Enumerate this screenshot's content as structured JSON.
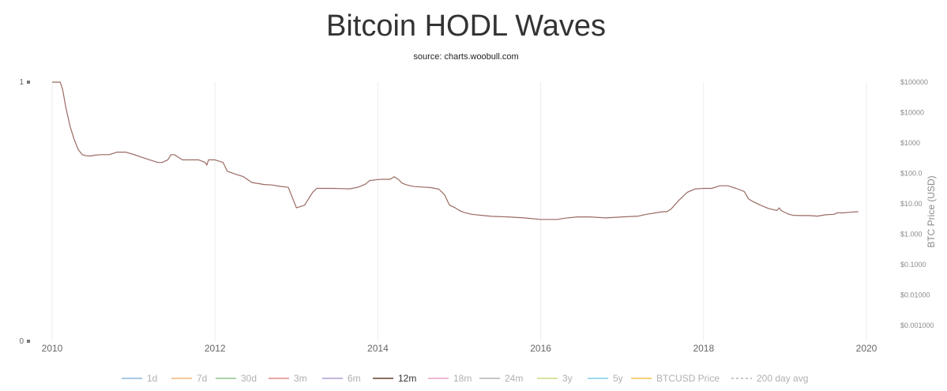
{
  "title": "Bitcoin HODL Waves",
  "subtitle": "source: charts.woobull.com",
  "chart_data": {
    "type": "line",
    "x_ticks": [
      "2010",
      "2012",
      "2014",
      "2016",
      "2018",
      "2020"
    ],
    "y_left_ticks": [
      "0",
      "1"
    ],
    "ylim_left": [
      0,
      1
    ],
    "y_right_ticks": [
      "$0.001000",
      "$0.01000",
      "$0.1000",
      "$1.000",
      "$10.00",
      "$100.0",
      "$1000",
      "$10000",
      "$100000"
    ],
    "y_right_label": "BTC Price (USD)",
    "series": [
      {
        "name": "12m",
        "color": "#9a6a62",
        "x": [
          2010.0,
          2010.06,
          2010.1,
          2010.13,
          2010.17,
          2010.22,
          2010.27,
          2010.32,
          2010.37,
          2010.42,
          2010.47,
          2010.52,
          2010.6,
          2010.7,
          2010.8,
          2010.9,
          2011.0,
          2011.1,
          2011.2,
          2011.3,
          2011.35,
          2011.42,
          2011.46,
          2011.5,
          2011.55,
          2011.6,
          2011.7,
          2011.8,
          2011.88,
          2011.9,
          2011.92,
          2012.0,
          2012.1,
          2012.15,
          2012.25,
          2012.35,
          2012.45,
          2012.5,
          2012.55,
          2012.6,
          2012.7,
          2012.8,
          2012.9,
          2013.0,
          2013.1,
          2013.2,
          2013.25,
          2013.35,
          2013.45,
          2013.55,
          2013.65,
          2013.75,
          2013.8,
          2013.85,
          2013.9,
          2014.0,
          2014.05,
          2014.1,
          2014.15,
          2014.2,
          2014.25,
          2014.3,
          2014.35,
          2014.4,
          2014.45,
          2014.55,
          2014.65,
          2014.75,
          2014.82,
          2014.88,
          2014.95,
          2015.0,
          2015.05,
          2015.15,
          2015.3,
          2015.4,
          2015.6,
          2015.8,
          2016.0,
          2016.2,
          2016.3,
          2016.45,
          2016.5,
          2016.6,
          2016.8,
          2017.0,
          2017.2,
          2017.3,
          2017.5,
          2017.55,
          2017.6,
          2017.7,
          2017.8,
          2017.9,
          2018.0,
          2018.1,
          2018.2,
          2018.3,
          2018.4,
          2018.5,
          2018.55,
          2018.6,
          2018.7,
          2018.8,
          2018.9,
          2018.93,
          2018.95,
          2019.0,
          2019.05,
          2019.1,
          2019.2,
          2019.3,
          2019.4,
          2019.5,
          2019.6,
          2019.65,
          2019.7,
          2019.8,
          2019.9
        ],
        "values": [
          1.0,
          1.0,
          1.0,
          0.97,
          0.9,
          0.83,
          0.78,
          0.74,
          0.72,
          0.716,
          0.715,
          0.718,
          0.72,
          0.72,
          0.73,
          0.73,
          0.721,
          0.71,
          0.7,
          0.69,
          0.69,
          0.7,
          0.72,
          0.72,
          0.71,
          0.7,
          0.7,
          0.7,
          0.69,
          0.68,
          0.7,
          0.7,
          0.69,
          0.656,
          0.645,
          0.635,
          0.613,
          0.61,
          0.608,
          0.605,
          0.603,
          0.598,
          0.594,
          0.515,
          0.525,
          0.575,
          0.59,
          0.59,
          0.59,
          0.589,
          0.588,
          0.594,
          0.6,
          0.607,
          0.62,
          0.624,
          0.625,
          0.625,
          0.625,
          0.635,
          0.625,
          0.61,
          0.604,
          0.6,
          0.597,
          0.595,
          0.593,
          0.587,
          0.565,
          0.525,
          0.515,
          0.505,
          0.498,
          0.49,
          0.485,
          0.482,
          0.48,
          0.476,
          0.47,
          0.47,
          0.475,
          0.48,
          0.48,
          0.48,
          0.476,
          0.48,
          0.483,
          0.49,
          0.5,
          0.5,
          0.51,
          0.545,
          0.575,
          0.588,
          0.59,
          0.59,
          0.6,
          0.6,
          0.59,
          0.578,
          0.55,
          0.54,
          0.525,
          0.512,
          0.505,
          0.515,
          0.505,
          0.497,
          0.49,
          0.486,
          0.485,
          0.485,
          0.483,
          0.488,
          0.49,
          0.496,
          0.495,
          0.498,
          0.5
        ]
      }
    ],
    "legend": [
      "1d",
      "7d",
      "30d",
      "3m",
      "6m",
      "12m",
      "18m",
      "24m",
      "3y",
      "5y",
      "BTCUSD Price",
      "200 day avg"
    ],
    "legend_colors": [
      "#a8c8e6",
      "#f7c99a",
      "#a9d3a6",
      "#e6a6a6",
      "#c3b6e0",
      "#8d6e63",
      "#f2b8d6",
      "#c6c6c6",
      "#d9e3a3",
      "#9fd8ee",
      "#f3d175",
      "#c8c8c8"
    ],
    "legend_active": "12m"
  }
}
